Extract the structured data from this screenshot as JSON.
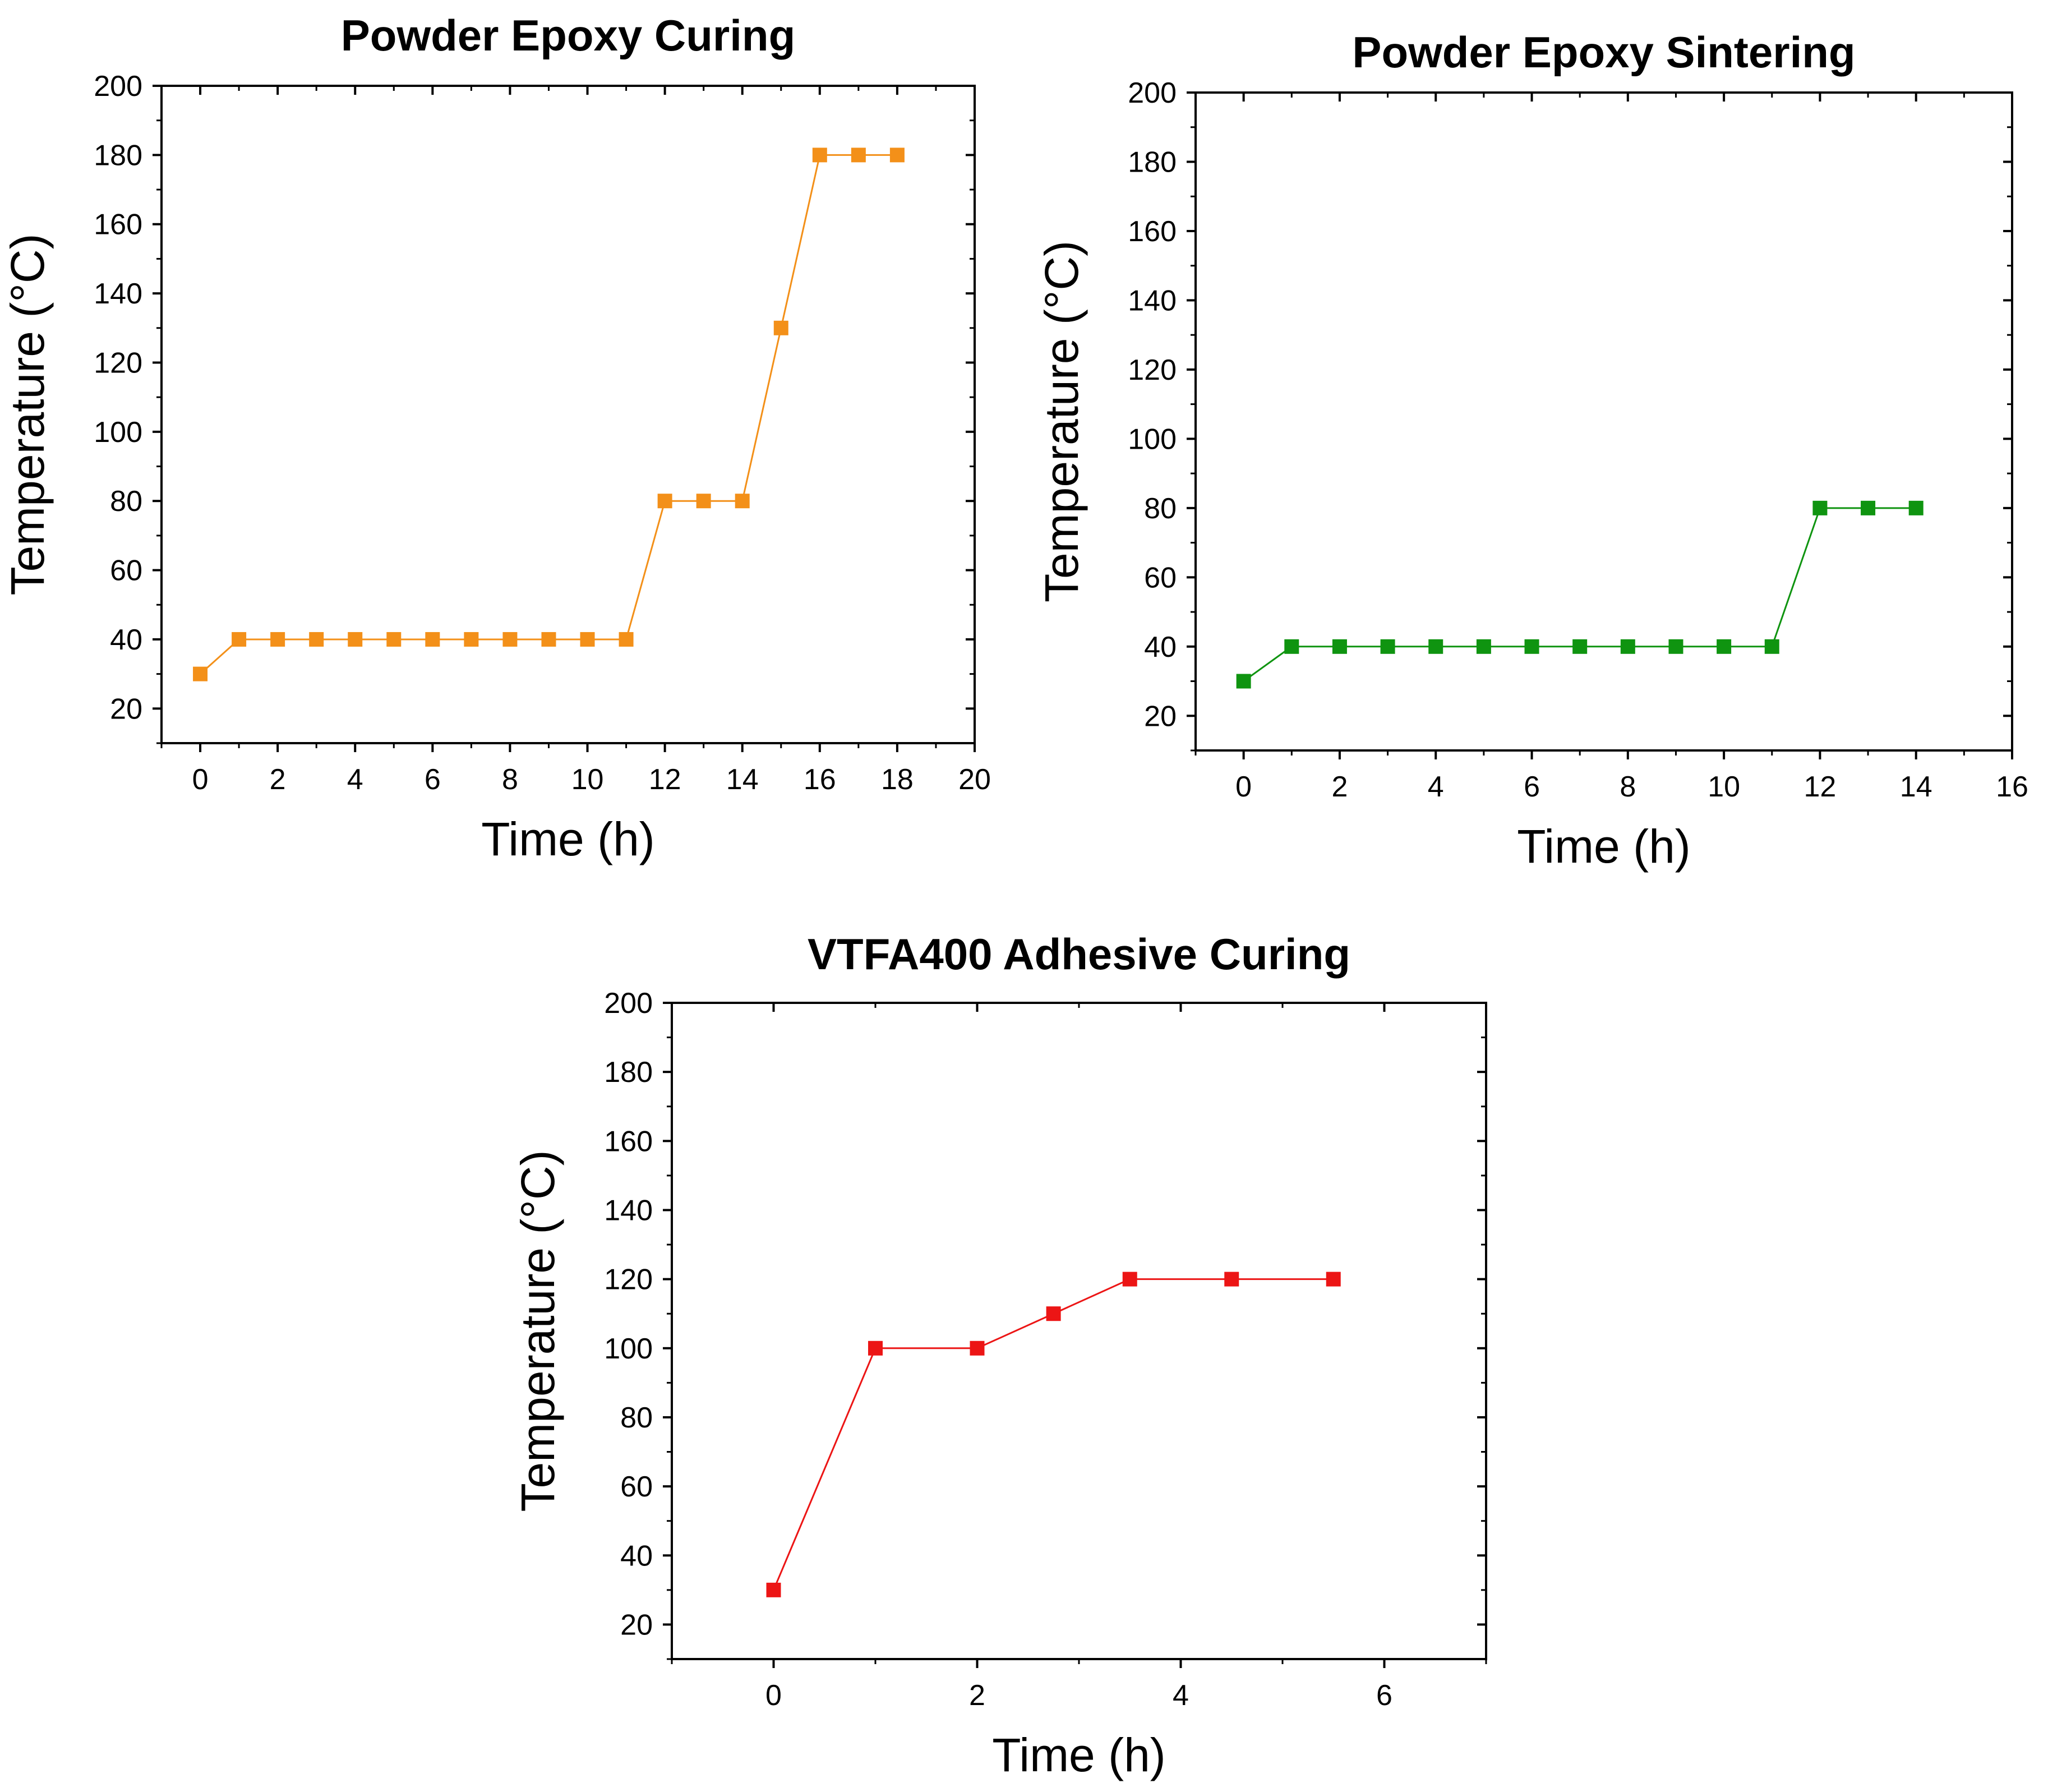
{
  "chart_data": [
    {
      "type": "line",
      "title": "Powder Epoxy Curing",
      "xlabel": "Time (h)",
      "ylabel": "Temperature (°C)",
      "xlim": [
        -1,
        20
      ],
      "ylim": [
        10,
        200
      ],
      "xticks": [
        0,
        2,
        4,
        6,
        8,
        10,
        12,
        14,
        16,
        18,
        20
      ],
      "yticks": [
        20,
        40,
        60,
        80,
        100,
        120,
        140,
        160,
        180,
        200
      ],
      "color": "#f39019",
      "marker": "square",
      "series": [
        {
          "name": "Powder Epoxy Curing",
          "x": [
            0,
            1,
            2,
            3,
            4,
            5,
            6,
            7,
            8,
            9,
            10,
            11,
            12,
            13,
            14,
            15,
            16,
            17,
            18
          ],
          "y": [
            30,
            40,
            40,
            40,
            40,
            40,
            40,
            40,
            40,
            40,
            40,
            40,
            80,
            80,
            80,
            130,
            180,
            180,
            180
          ]
        }
      ]
    },
    {
      "type": "line",
      "title": "Powder Epoxy Sintering",
      "xlabel": "Time (h)",
      "ylabel": "Temperature (°C)",
      "xlim": [
        -1,
        16
      ],
      "ylim": [
        10,
        200
      ],
      "xticks": [
        0,
        2,
        4,
        6,
        8,
        10,
        12,
        14,
        16
      ],
      "yticks": [
        20,
        40,
        60,
        80,
        100,
        120,
        140,
        160,
        180,
        200
      ],
      "color": "#0f9410",
      "marker": "square",
      "series": [
        {
          "name": "Powder Epoxy Sintering",
          "x": [
            0,
            1,
            2,
            3,
            4,
            5,
            6,
            7,
            8,
            9,
            10,
            11,
            12,
            13,
            14
          ],
          "y": [
            30,
            40,
            40,
            40,
            40,
            40,
            40,
            40,
            40,
            40,
            40,
            40,
            80,
            80,
            80
          ]
        }
      ]
    },
    {
      "type": "line",
      "title": "VTFA400 Adhesive Curing",
      "xlabel": "Time (h)",
      "ylabel": "Temperature (°C)",
      "xlim": [
        -1,
        7
      ],
      "ylim": [
        10,
        200
      ],
      "xticks": [
        0,
        2,
        4,
        6
      ],
      "yticks": [
        20,
        40,
        60,
        80,
        100,
        120,
        140,
        160,
        180,
        200
      ],
      "color": "#ec1515",
      "marker": "square",
      "series": [
        {
          "name": "VTFA400 Adhesive Curing",
          "x": [
            0,
            1,
            2,
            2.75,
            3.5,
            4.5,
            5.5
          ],
          "y": [
            30,
            100,
            100,
            110,
            120,
            120,
            120
          ]
        }
      ]
    }
  ]
}
